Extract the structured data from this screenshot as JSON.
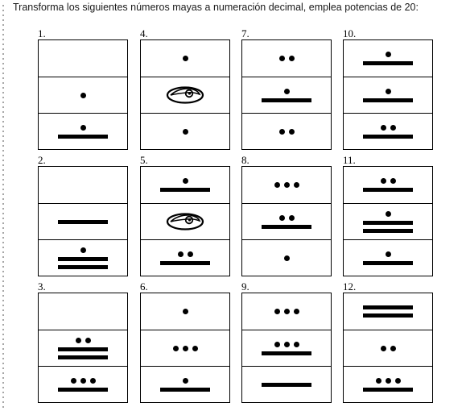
{
  "instruction": "Transforma los siguientes números mayas a numeración decimal, emplea potencias de 20:",
  "exercises": [
    {
      "label": "1.",
      "levels": [
        {
          "dots": 0,
          "bars": 0,
          "shell": false
        },
        {
          "dots": 1,
          "bars": 0,
          "shell": false
        },
        {
          "dots": 1,
          "bars": 1,
          "shell": false
        }
      ]
    },
    {
      "label": "2.",
      "levels": [
        {
          "dots": 0,
          "bars": 0,
          "shell": false
        },
        {
          "dots": 0,
          "bars": 1,
          "shell": false
        },
        {
          "dots": 1,
          "bars": 2,
          "shell": false
        }
      ]
    },
    {
      "label": "3.",
      "levels": [
        {
          "dots": 0,
          "bars": 0,
          "shell": false
        },
        {
          "dots": 2,
          "bars": 2,
          "shell": false
        },
        {
          "dots": 3,
          "bars": 1,
          "shell": false
        }
      ]
    },
    {
      "label": "4.",
      "levels": [
        {
          "dots": 1,
          "bars": 0,
          "shell": false
        },
        {
          "dots": 0,
          "bars": 0,
          "shell": true
        },
        {
          "dots": 1,
          "bars": 0,
          "shell": false
        }
      ]
    },
    {
      "label": "5.",
      "levels": [
        {
          "dots": 1,
          "bars": 1,
          "shell": false
        },
        {
          "dots": 0,
          "bars": 0,
          "shell": true
        },
        {
          "dots": 2,
          "bars": 1,
          "shell": false
        }
      ]
    },
    {
      "label": "6.",
      "levels": [
        {
          "dots": 1,
          "bars": 0,
          "shell": false
        },
        {
          "dots": 3,
          "bars": 0,
          "shell": false
        },
        {
          "dots": 1,
          "bars": 1,
          "shell": false
        }
      ]
    },
    {
      "label": "7.",
      "levels": [
        {
          "dots": 2,
          "bars": 0,
          "shell": false
        },
        {
          "dots": 1,
          "bars": 1,
          "shell": false
        },
        {
          "dots": 2,
          "bars": 0,
          "shell": false
        }
      ]
    },
    {
      "label": "8.",
      "levels": [
        {
          "dots": 3,
          "bars": 0,
          "shell": false
        },
        {
          "dots": 2,
          "bars": 1,
          "shell": false
        },
        {
          "dots": 1,
          "bars": 0,
          "shell": false
        }
      ]
    },
    {
      "label": "9.",
      "levels": [
        {
          "dots": 3,
          "bars": 0,
          "shell": false
        },
        {
          "dots": 3,
          "bars": 1,
          "shell": false
        },
        {
          "dots": 0,
          "bars": 1,
          "shell": false
        }
      ]
    },
    {
      "label": "10.",
      "levels": [
        {
          "dots": 1,
          "bars": 1,
          "shell": false
        },
        {
          "dots": 1,
          "bars": 1,
          "shell": false
        },
        {
          "dots": 2,
          "bars": 1,
          "shell": false
        }
      ]
    },
    {
      "label": "11.",
      "levels": [
        {
          "dots": 2,
          "bars": 1,
          "shell": false
        },
        {
          "dots": 1,
          "bars": 2,
          "shell": false
        },
        {
          "dots": 1,
          "bars": 1,
          "shell": false
        }
      ]
    },
    {
      "label": "12.",
      "levels": [
        {
          "dots": 0,
          "bars": 2,
          "shell": false
        },
        {
          "dots": 2,
          "bars": 0,
          "shell": false
        },
        {
          "dots": 3,
          "bars": 1,
          "shell": false
        }
      ]
    }
  ]
}
